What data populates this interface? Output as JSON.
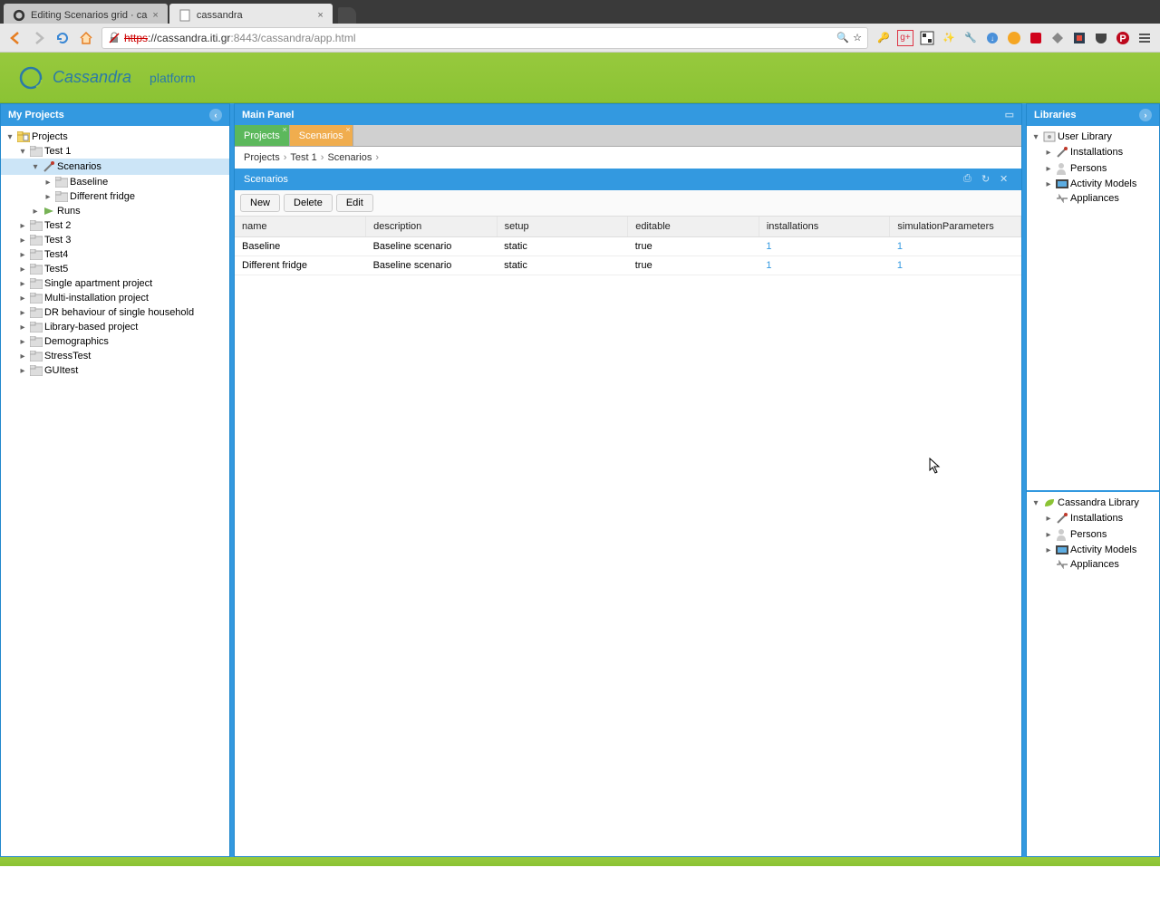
{
  "browser": {
    "tabs": [
      {
        "title": "Editing Scenarios grid · ca",
        "active": false
      },
      {
        "title": "cassandra",
        "active": true
      }
    ],
    "url": {
      "proto": "https",
      "host": "://cassandra.iti.gr",
      "port": ":8443",
      "path": "/cassandra/app.html"
    }
  },
  "logo": {
    "brand": "Cassandra",
    "sub": "platform"
  },
  "leftPanel": {
    "title": "My Projects",
    "tree": [
      {
        "label": "Projects",
        "indent": 0,
        "toggle": "▾",
        "icon": "projects"
      },
      {
        "label": "Test 1",
        "indent": 1,
        "toggle": "▾",
        "icon": "folder"
      },
      {
        "label": "Scenarios",
        "indent": 2,
        "toggle": "▾",
        "icon": "config",
        "selected": true
      },
      {
        "label": "Baseline",
        "indent": 3,
        "toggle": "▸",
        "icon": "folder"
      },
      {
        "label": "Different fridge",
        "indent": 3,
        "toggle": "▸",
        "icon": "folder"
      },
      {
        "label": "Runs",
        "indent": 2,
        "toggle": "▸",
        "icon": "runs"
      },
      {
        "label": "Test 2",
        "indent": 1,
        "toggle": "▸",
        "icon": "folder"
      },
      {
        "label": "Test 3",
        "indent": 1,
        "toggle": "▸",
        "icon": "folder"
      },
      {
        "label": "Test4",
        "indent": 1,
        "toggle": "▸",
        "icon": "folder"
      },
      {
        "label": "Test5",
        "indent": 1,
        "toggle": "▸",
        "icon": "folder"
      },
      {
        "label": "Single apartment project",
        "indent": 1,
        "toggle": "▸",
        "icon": "folder"
      },
      {
        "label": "Multi-installation project",
        "indent": 1,
        "toggle": "▸",
        "icon": "folder"
      },
      {
        "label": "DR behaviour of single household",
        "indent": 1,
        "toggle": "▸",
        "icon": "folder"
      },
      {
        "label": "Library-based project",
        "indent": 1,
        "toggle": "▸",
        "icon": "folder"
      },
      {
        "label": "Demographics",
        "indent": 1,
        "toggle": "▸",
        "icon": "folder"
      },
      {
        "label": "StressTest",
        "indent": 1,
        "toggle": "▸",
        "icon": "folder"
      },
      {
        "label": "GUItest",
        "indent": 1,
        "toggle": "▸",
        "icon": "folder"
      }
    ]
  },
  "centerPanel": {
    "title": "Main Panel",
    "tabs": [
      {
        "label": "Projects",
        "cls": "green"
      },
      {
        "label": "Scenarios",
        "cls": "orange"
      }
    ],
    "breadcrumb": [
      "Projects",
      "Test 1",
      "Scenarios"
    ],
    "sectionTitle": "Scenarios",
    "buttons": {
      "new": "New",
      "delete": "Delete",
      "edit": "Edit"
    },
    "columns": [
      "name",
      "description",
      "setup",
      "editable",
      "installations",
      "simulationParameters"
    ],
    "colWidths": [
      "135px",
      "135px",
      "135px",
      "135px",
      "135px",
      "135px"
    ],
    "rows": [
      {
        "name": "Baseline",
        "description": "Baseline scenario",
        "setup": "static",
        "editable": "true",
        "installations": "1",
        "simulationParameters": "1"
      },
      {
        "name": "Different fridge",
        "description": "Baseline scenario",
        "setup": "static",
        "editable": "true",
        "installations": "1",
        "simulationParameters": "1"
      }
    ]
  },
  "rightPanel": {
    "title": "Libraries",
    "userLib": {
      "label": "User Library",
      "items": [
        {
          "label": "Installations",
          "toggle": "▸",
          "icon": "inst"
        },
        {
          "label": "Persons",
          "toggle": "▸",
          "icon": "person"
        },
        {
          "label": "Activity Models",
          "toggle": "▸",
          "icon": "act"
        },
        {
          "label": "Appliances",
          "toggle": "",
          "icon": "appl"
        }
      ]
    },
    "cassLib": {
      "label": "Cassandra Library",
      "items": [
        {
          "label": "Installations",
          "toggle": "▸",
          "icon": "inst"
        },
        {
          "label": "Persons",
          "toggle": "▸",
          "icon": "person"
        },
        {
          "label": "Activity Models",
          "toggle": "▸",
          "icon": "act"
        },
        {
          "label": "Appliances",
          "toggle": "",
          "icon": "appl"
        }
      ]
    }
  },
  "colors": {
    "green": "#8bc334",
    "blue": "#3399e0",
    "orange": "#f0ad4e"
  }
}
